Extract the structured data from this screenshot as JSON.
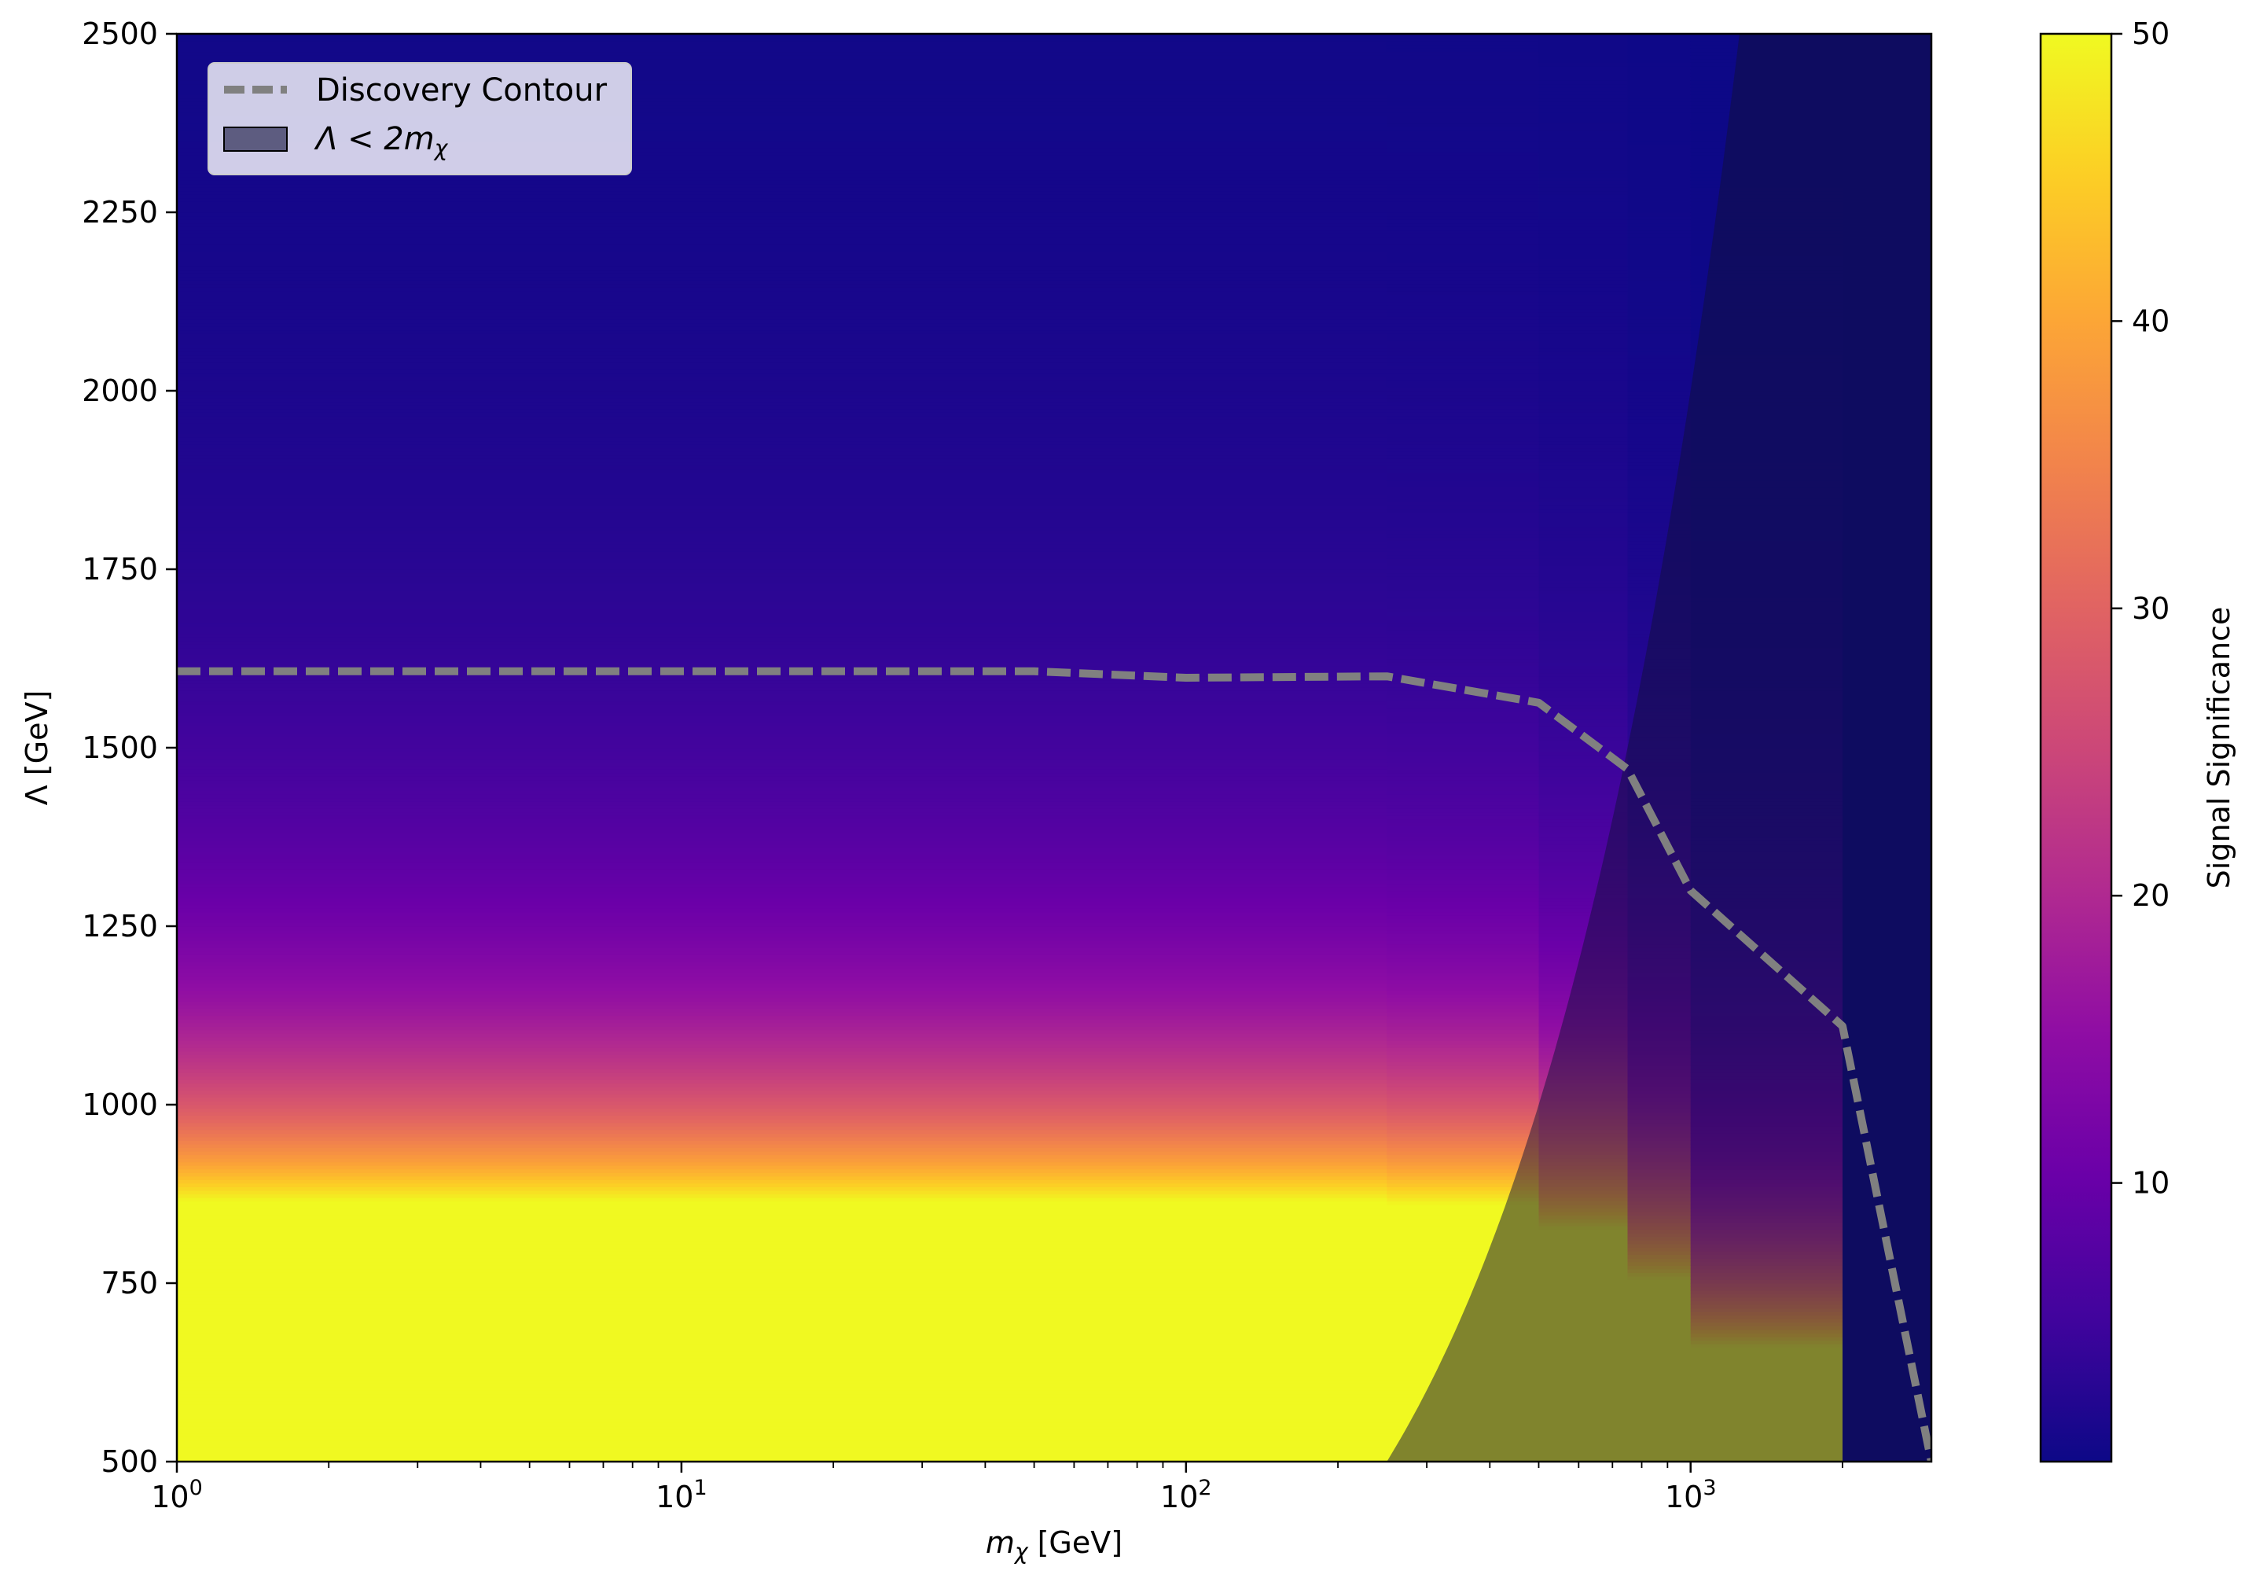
{
  "chart_data": {
    "type": "heatmap",
    "title": "",
    "xlabel_base": "m",
    "xlabel_sub": "χ",
    "xlabel_unit": " [GeV]",
    "ylabel": "Λ [GeV]",
    "x_scale": "log",
    "xlim": [
      1,
      3000
    ],
    "ylim": [
      500,
      2500
    ],
    "x_ticks": [
      {
        "value": 1,
        "base": "10",
        "exp": "0"
      },
      {
        "value": 10,
        "base": "10",
        "exp": "1"
      },
      {
        "value": 100,
        "base": "10",
        "exp": "2"
      },
      {
        "value": 1000,
        "base": "10",
        "exp": "3"
      }
    ],
    "y_ticks": [
      500,
      750,
      1000,
      1250,
      1500,
      1750,
      2000,
      2250,
      2500
    ],
    "colormap": "plasma",
    "colorbar": {
      "label": "Signal Significance",
      "range": [
        0.3,
        50
      ],
      "ticks": [
        10,
        20,
        30,
        40,
        50
      ]
    },
    "mass_columns": [
      {
        "x_start": 1,
        "x_end": 250,
        "saturation_lambda": 865
      },
      {
        "x_start": 250,
        "x_end": 500,
        "saturation_lambda": 860
      },
      {
        "x_start": 500,
        "x_end": 750,
        "saturation_lambda": 825
      },
      {
        "x_start": 750,
        "x_end": 1000,
        "saturation_lambda": 755
      },
      {
        "x_start": 1000,
        "x_end": 2000,
        "saturation_lambda": 660
      },
      {
        "x_start": 2000,
        "x_end": 3000,
        "saturation_lambda": 0
      }
    ],
    "discovery_contour": {
      "name": "Discovery Contour",
      "x": [
        1,
        50,
        100,
        250,
        500,
        750,
        1000,
        2000,
        3000
      ],
      "y": [
        1607,
        1607,
        1598,
        1600,
        1563,
        1470,
        1300,
        1110,
        500
      ],
      "color": "#808080"
    },
    "excluded_region": {
      "label_text": "Λ < 2m",
      "label_sub": "χ",
      "condition": "lambda < 2 * m_chi",
      "color": "#10103a"
    },
    "legend_position": "upper left"
  }
}
